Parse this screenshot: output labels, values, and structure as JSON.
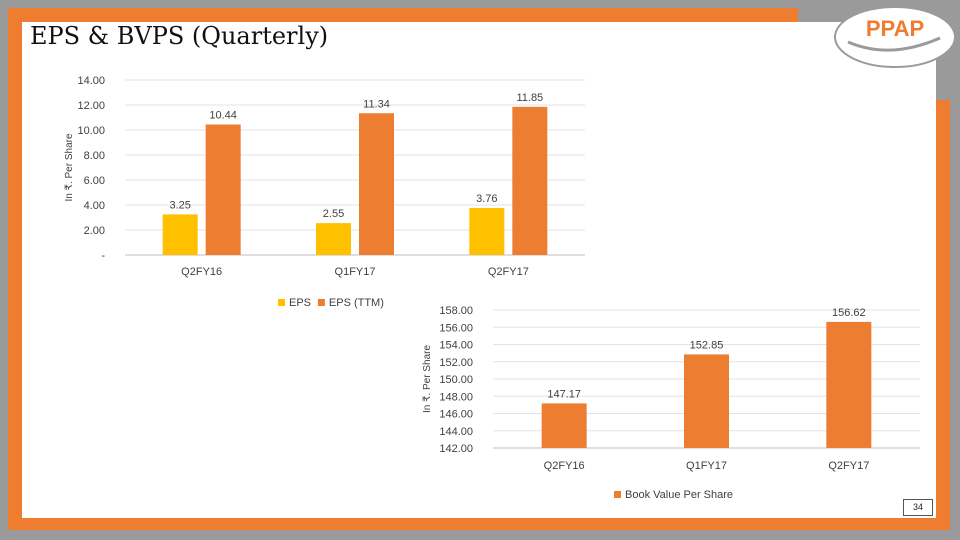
{
  "slide": {
    "title": "EPS & BVPS (Quarterly)",
    "logo_text": "PPAP",
    "page_number": "34"
  },
  "colors": {
    "accent": "#ef7d31",
    "frame": "#9a9a9a",
    "eps": "#ffc000",
    "eps_ttm": "#ed7d31",
    "bvps": "#ed7d31"
  },
  "chart_data": [
    {
      "type": "bar",
      "title": "",
      "ylabel": "In ₹. Per Share",
      "xlabel": "",
      "categories": [
        "Q2FY16",
        "Q1FY17",
        "Q2FY17"
      ],
      "series": [
        {
          "name": "EPS",
          "values": [
            3.25,
            2.55,
            3.76
          ],
          "labels": [
            "3.25",
            "2.55",
            "3.76"
          ],
          "color": "#ffc000"
        },
        {
          "name": "EPS (TTM)",
          "values": [
            10.44,
            11.34,
            11.85
          ],
          "labels": [
            "10.44",
            "11.34",
            "11.85"
          ],
          "color": "#ed7d31"
        }
      ],
      "ylim": [
        0,
        14
      ],
      "yticks": [
        0,
        2,
        4,
        6,
        8,
        10,
        12,
        14
      ],
      "ytick_labels": [
        "-",
        "2.00",
        "4.00",
        "6.00",
        "8.00",
        "10.00",
        "12.00",
        "14.00"
      ],
      "grid": true,
      "legend": "bottom"
    },
    {
      "type": "bar",
      "title": "",
      "ylabel": "In ₹. Per Share",
      "xlabel": "",
      "categories": [
        "Q2FY16",
        "Q1FY17",
        "Q2FY17"
      ],
      "series": [
        {
          "name": "Book Value Per Share",
          "values": [
            147.17,
            152.85,
            156.62
          ],
          "labels": [
            "147.17",
            "152.85",
            "156.62"
          ],
          "color": "#ed7d31"
        }
      ],
      "ylim": [
        142,
        158
      ],
      "yticks": [
        142,
        144,
        146,
        148,
        150,
        152,
        154,
        156,
        158
      ],
      "ytick_labels": [
        "142.00",
        "144.00",
        "146.00",
        "148.00",
        "150.00",
        "152.00",
        "154.00",
        "156.00",
        "158.00"
      ],
      "grid": true,
      "legend": "bottom"
    }
  ]
}
